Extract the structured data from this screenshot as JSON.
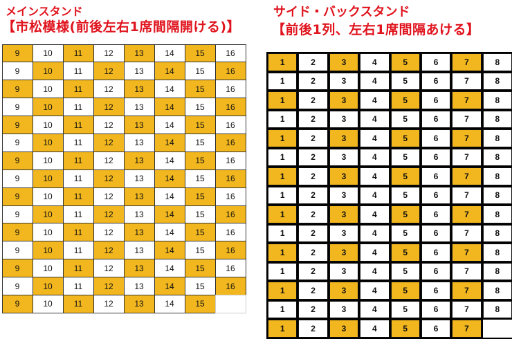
{
  "main_stand": {
    "title": "メインスタンド",
    "subtitle": "【市松模様(前後左右1席間隔開ける)】",
    "highlight_color": "#f2b71e",
    "rows": [
      {
        "seats": [
          9,
          10,
          11,
          12,
          13,
          14,
          15,
          16
        ],
        "highlight": "10101010"
      },
      {
        "seats": [
          9,
          10,
          11,
          12,
          13,
          14,
          15,
          16
        ],
        "highlight": "01010101"
      },
      {
        "seats": [
          9,
          10,
          11,
          12,
          13,
          14,
          15,
          16
        ],
        "highlight": "10101010"
      },
      {
        "seats": [
          9,
          10,
          11,
          12,
          13,
          14,
          15,
          16
        ],
        "highlight": "01010101"
      },
      {
        "seats": [
          9,
          10,
          11,
          12,
          13,
          14,
          15,
          16
        ],
        "highlight": "10101010"
      },
      {
        "seats": [
          9,
          10,
          11,
          12,
          13,
          14,
          15,
          16
        ],
        "highlight": "01010101"
      },
      {
        "seats": [
          9,
          10,
          11,
          12,
          13,
          14,
          15,
          16
        ],
        "highlight": "10101010"
      },
      {
        "seats": [
          9,
          10,
          11,
          12,
          13,
          14,
          15,
          16
        ],
        "highlight": "01010101"
      },
      {
        "seats": [
          9,
          10,
          11,
          12,
          13,
          14,
          15,
          16
        ],
        "highlight": "10101010"
      },
      {
        "seats": [
          9,
          10,
          11,
          12,
          13,
          14,
          15,
          16
        ],
        "highlight": "01010101"
      },
      {
        "seats": [
          9,
          10,
          11,
          12,
          13,
          14,
          15,
          16
        ],
        "highlight": "10101010"
      },
      {
        "seats": [
          9,
          10,
          11,
          12,
          13,
          14,
          15,
          16
        ],
        "highlight": "01010101"
      },
      {
        "seats": [
          9,
          10,
          11,
          12,
          13,
          14,
          15,
          16
        ],
        "highlight": "10101010"
      },
      {
        "seats": [
          9,
          10,
          11,
          12,
          13,
          14,
          15,
          16
        ],
        "highlight": "01010101"
      },
      {
        "seats": [
          9,
          10,
          11,
          12,
          13,
          14,
          15,
          ""
        ],
        "highlight": "1010101b"
      }
    ]
  },
  "side_back_stand": {
    "title": "サイド・バックスタンド",
    "subtitle": "【前後1列、左右1席間隔あける】",
    "highlight_color": "#f2b71e",
    "rows": [
      {
        "seats": [
          1,
          2,
          3,
          4,
          5,
          6,
          7,
          8
        ],
        "highlight": "10101010"
      },
      {
        "seats": [
          1,
          2,
          3,
          4,
          5,
          6,
          7,
          8
        ],
        "highlight": "00000000"
      },
      {
        "seats": [
          1,
          2,
          3,
          4,
          5,
          6,
          7,
          8
        ],
        "highlight": "10101010"
      },
      {
        "seats": [
          1,
          2,
          3,
          4,
          5,
          6,
          7,
          8
        ],
        "highlight": "00000000"
      },
      {
        "seats": [
          1,
          2,
          3,
          4,
          5,
          6,
          7,
          8
        ],
        "highlight": "10101010"
      },
      {
        "seats": [
          1,
          2,
          3,
          4,
          5,
          6,
          7,
          8
        ],
        "highlight": "00000000"
      },
      {
        "seats": [
          1,
          2,
          3,
          4,
          5,
          6,
          7,
          8
        ],
        "highlight": "10101010"
      },
      {
        "seats": [
          1,
          2,
          3,
          4,
          5,
          6,
          7,
          8
        ],
        "highlight": "00000000"
      },
      {
        "seats": [
          1,
          2,
          3,
          4,
          5,
          6,
          7,
          8
        ],
        "highlight": "10101010"
      },
      {
        "seats": [
          1,
          2,
          3,
          4,
          5,
          6,
          7,
          8
        ],
        "highlight": "00000000"
      },
      {
        "seats": [
          1,
          2,
          3,
          4,
          5,
          6,
          7,
          8
        ],
        "highlight": "10101010"
      },
      {
        "seats": [
          1,
          2,
          3,
          4,
          5,
          6,
          7,
          8
        ],
        "highlight": "00000000"
      },
      {
        "seats": [
          1,
          2,
          3,
          4,
          5,
          6,
          7,
          8
        ],
        "highlight": "10101010"
      },
      {
        "seats": [
          1,
          2,
          3,
          4,
          5,
          6,
          7,
          8
        ],
        "highlight": "00000000"
      },
      {
        "seats": [
          1,
          2,
          3,
          4,
          5,
          6,
          7,
          ""
        ],
        "highlight": "1010101n"
      }
    ]
  }
}
